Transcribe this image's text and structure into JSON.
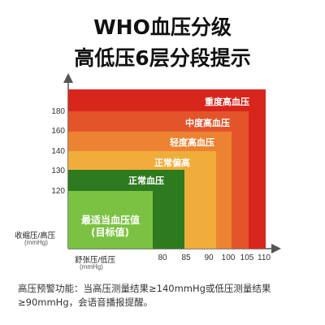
{
  "title_line1": "WHO血压分级",
  "title_line2": "高低压6层分段提示",
  "y_axis_label": "收缩压/高压",
  "y_axis_unit": "(mmHg)",
  "x_axis_label": "舒张压/低压",
  "x_axis_unit": "(mmHg)",
  "y_ticks": [
    "180",
    "160",
    "140",
    "130",
    "120"
  ],
  "x_ticks": [
    "80",
    "85",
    "90",
    "100",
    "105",
    "110"
  ],
  "zones": [
    {
      "name": "重度高血压",
      "color": "#d9261c"
    },
    {
      "name": "中度高血压",
      "color": "#e4542b"
    },
    {
      "name": "轻度高血压",
      "color": "#ec8332"
    },
    {
      "name": "正常偏高",
      "color": "#f0ad3b"
    },
    {
      "name": "正常血压",
      "color": "#2d7a1f"
    },
    {
      "name": "最适当血压值",
      "name_line2": "(目标值)",
      "color": "#7cc242"
    }
  ],
  "note": "高压预警功能：当高压测量结果≥140mmHg或低压测量结果≥90mmHg，会语音播报提醒。"
}
